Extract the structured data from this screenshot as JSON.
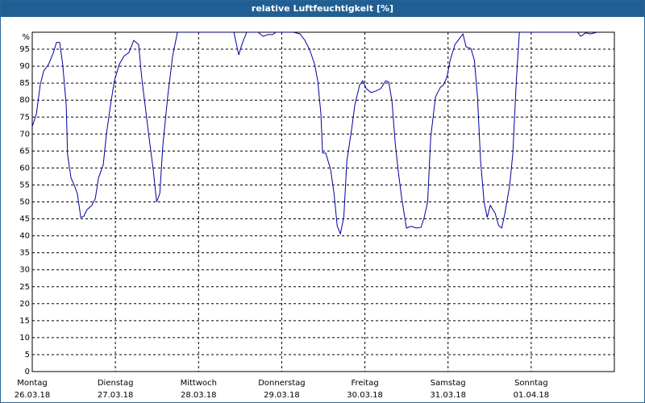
{
  "chart_data": {
    "type": "line",
    "title": "relative Luftfeuchtigkeit [%]",
    "x": [
      0,
      1.2,
      2.3,
      3.3,
      4.7,
      6.1,
      7.0,
      7.9,
      8.8,
      9.8,
      10.2,
      11.2,
      12.1,
      13.0,
      14.0,
      14.9,
      15.8,
      17.2,
      18.2,
      19.1,
      20.5,
      21.4,
      22.8,
      23.7,
      25.1,
      26.5,
      27.9,
      29.3,
      30.7,
      31.7,
      33.1,
      34.0,
      34.9,
      35.9,
      36.8,
      37.7,
      39.1,
      40.5,
      41.9,
      58.2,
      59.6,
      60.5,
      61.9,
      65.2,
      66.6,
      68.0,
      69.4,
      70.3,
      75.4,
      77.3,
      78.7,
      80.1,
      81.5,
      82.4,
      83.3,
      83.8,
      84.7,
      86.1,
      87.1,
      88.0,
      88.9,
      89.9,
      90.8,
      92.2,
      93.1,
      94.5,
      95.4,
      96.4,
      97.8,
      99.2,
      100.6,
      102.0,
      102.9,
      103.8,
      104.8,
      105.7,
      106.6,
      108.0,
      109.4,
      110.8,
      112.2,
      113.1,
      114.1,
      115.0,
      116.4,
      117.8,
      118.7,
      119.7,
      120.6,
      122.0,
      122.9,
      124.3,
      125.2,
      126.6,
      127.6,
      128.5,
      129.4,
      130.4,
      131.3,
      132.2,
      133.6,
      134.6,
      135.5,
      136.4,
      137.8,
      138.7,
      139.7,
      140.6,
      157.4,
      158.3,
      159.7,
      161.1,
      163.0
    ],
    "values": [
      72.2,
      76,
      84.5,
      88.6,
      90.5,
      94,
      97,
      97,
      90.5,
      78.6,
      64,
      57,
      55,
      52.5,
      45.4,
      45.8,
      47.7,
      49,
      51,
      57,
      61,
      70,
      80,
      85.7,
      90.5,
      93,
      94,
      97.6,
      96.4,
      85.7,
      74,
      66.7,
      59.6,
      50,
      52.5,
      66.7,
      81,
      93,
      100,
      100,
      93.3,
      96.4,
      100,
      100,
      98.8,
      99.3,
      99.3,
      100,
      100,
      99.5,
      97.6,
      94.8,
      90.5,
      85.7,
      76,
      64.4,
      64.4,
      59.6,
      52.5,
      43,
      40.6,
      45.4,
      62,
      71.5,
      78.6,
      84.5,
      85.7,
      83.4,
      82.2,
      82.7,
      83.4,
      85.7,
      85.3,
      79.8,
      66.7,
      58.4,
      51.3,
      42.3,
      42.8,
      42.3,
      42.5,
      45.4,
      50,
      69,
      81,
      83.8,
      84.5,
      86.9,
      91.7,
      96.4,
      97.6,
      99.5,
      95.7,
      95.2,
      91.7,
      81,
      62,
      50,
      45.4,
      49,
      46.6,
      43,
      42.3,
      46.6,
      54.9,
      64.4,
      85.7,
      100,
      100,
      98.8,
      99.8,
      99.5,
      100
    ],
    "color": "#0000a0",
    "xlim": [
      0,
      168
    ],
    "xticks": [
      {
        "value": 0,
        "label": "Montag"
      },
      {
        "value": 24,
        "label": "Dienstag"
      },
      {
        "value": 48,
        "label": "Mittwoch"
      },
      {
        "value": 72,
        "label": "Donnerstag"
      },
      {
        "value": 96,
        "label": "Freitag"
      },
      {
        "value": 120,
        "label": "Samstag"
      },
      {
        "value": 144,
        "label": "Sonntag"
      }
    ],
    "xtick_dates": [
      "26.03.18",
      "27.03.18",
      "28.03.18",
      "29.03.18",
      "30.03.18",
      "31.03.18",
      "01.04.18"
    ],
    "ylim": [
      0,
      100
    ],
    "yticks": [
      0,
      5,
      10,
      15,
      20,
      25,
      30,
      35,
      40,
      45,
      50,
      55,
      60,
      65,
      70,
      75,
      80,
      85,
      90,
      95,
      {
        "value": 100,
        "label": "%"
      }
    ],
    "grid": true
  }
}
